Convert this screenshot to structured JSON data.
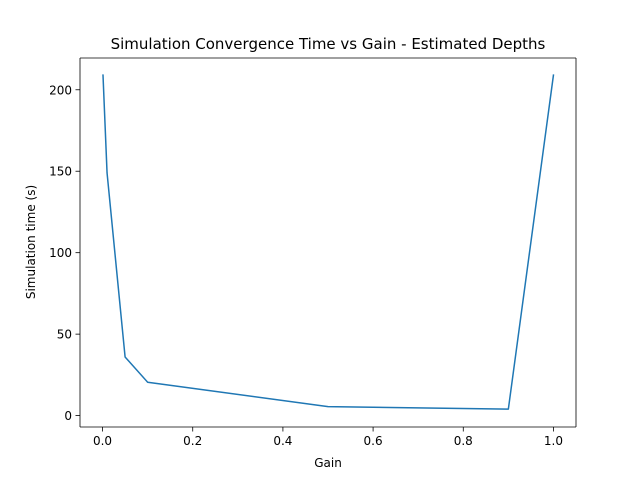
{
  "chart_data": {
    "type": "line",
    "title": "Simulation Convergence Time vs Gain - Estimated Depths",
    "xlabel": "Gain",
    "ylabel": "Simulation time (s)",
    "xlim": [
      -0.05,
      1.05
    ],
    "ylim": [
      -7,
      219.5
    ],
    "xticks": [
      0.0,
      0.2,
      0.4,
      0.6,
      0.8,
      1.0
    ],
    "xtick_labels": [
      "0.0",
      "0.2",
      "0.4",
      "0.6",
      "0.8",
      "1.0"
    ],
    "yticks": [
      0,
      50,
      100,
      150,
      200
    ],
    "ytick_labels": [
      "0",
      "50",
      "100",
      "150",
      "200"
    ],
    "grid": false,
    "series": [
      {
        "color": "#1f77b4",
        "x": [
          0.001,
          0.01,
          0.05,
          0.1,
          0.5,
          0.9,
          1.0
        ],
        "y": [
          209,
          149,
          36,
          20.5,
          5.5,
          4,
          209
        ]
      }
    ]
  }
}
